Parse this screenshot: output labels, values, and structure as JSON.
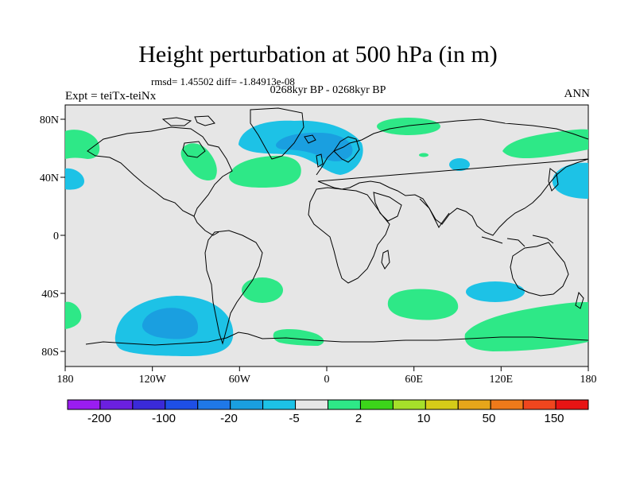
{
  "title": "Height perturbation at 500 hPa (in m)",
  "stats": "rmsd= 1.45502 diff= -1.84913e-08",
  "subtitle": "0268kyr BP - 0268kyr BP",
  "experiment": "Expt = teiTx-teiNx",
  "season": "ANN",
  "map": {
    "lon_labels": [
      "180",
      "120W",
      "60W",
      "0",
      "60E",
      "120E",
      "180"
    ],
    "lat_labels": [
      "80N",
      "40N",
      "0",
      "40S",
      "80S"
    ],
    "lon_range": [
      -180,
      180
    ],
    "lat_range": [
      -90,
      90
    ],
    "background_color": "#e6e6e6",
    "coastline_color": "#000000"
  },
  "colorbar": {
    "colors": [
      "#9a1df0",
      "#6b20e0",
      "#3a2ad8",
      "#1e4fe6",
      "#1f78e8",
      "#1a9fe0",
      "#1dc2e6",
      "#e6e6e6",
      "#2ee887",
      "#3cd41a",
      "#a6e02a",
      "#d6cc18",
      "#e6a61a",
      "#ef7a1a",
      "#f0461e",
      "#e81414"
    ],
    "labels": [
      "-200",
      "-100",
      "-20",
      "-5",
      "2",
      "10",
      "50",
      "150"
    ]
  },
  "regions": [
    {
      "id": "greenland-low",
      "sign": "negative",
      "color": "#1dc2e6"
    },
    {
      "id": "greenland-low-core",
      "sign": "negative",
      "color": "#1a9fe0"
    },
    {
      "id": "southern-pacific-low",
      "sign": "negative",
      "color": "#1dc2e6"
    },
    {
      "id": "southern-pacific-low-core",
      "sign": "negative",
      "color": "#1a9fe0"
    },
    {
      "id": "positive-anomaly",
      "sign": "positive",
      "color": "#2ee887"
    }
  ]
}
